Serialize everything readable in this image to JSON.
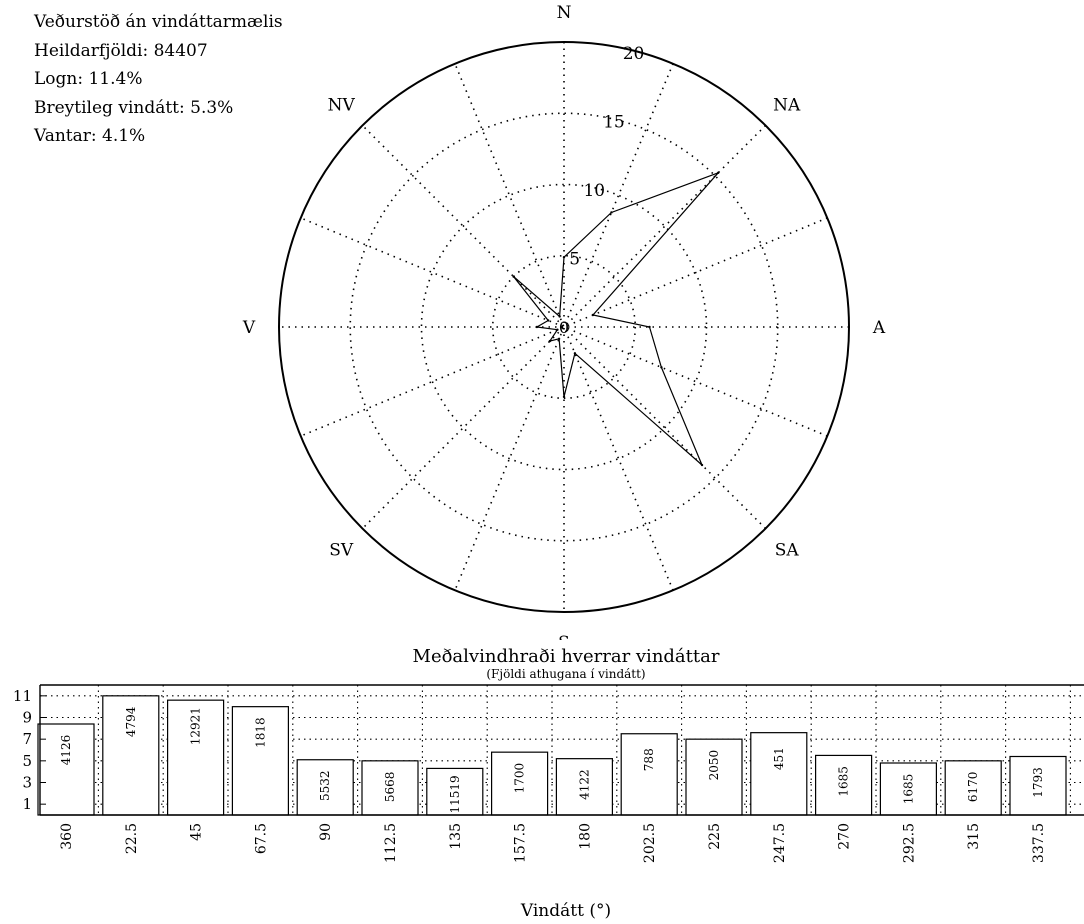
{
  "info": {
    "station": "Veðurstöð án vindáttarmælis",
    "total": "Heildarfjöldi: 84407",
    "calm": "Logn: 11.4%",
    "variable": "Breytileg vindátt: 5.3%",
    "missing": "Vantar: 4.1%"
  },
  "chart_data": [
    {
      "type": "polar-line",
      "compass_labels": [
        "N",
        "NA",
        "A",
        "SA",
        "S",
        "SV",
        "V",
        "NV"
      ],
      "radial_ticks": [
        5,
        10,
        15,
        20
      ],
      "center_label": "0",
      "rmax": 20,
      "grid": true,
      "series": [
        {
          "directions_deg": [
            0,
            22.5,
            45,
            67.5,
            90,
            112.5,
            135,
            157.5,
            180,
            202.5,
            225,
            247.5,
            270,
            292.5,
            315,
            337.5
          ],
          "values": [
            4.9,
            8.7,
            15.3,
            2.2,
            6.0,
            7.4,
            13.7,
            2.0,
            4.9,
            0.9,
            1.4,
            0.5,
            1.9,
            1.2,
            5.0,
            0.8
          ]
        }
      ]
    },
    {
      "type": "bar",
      "title": "Meðalvindhraði hverrar vindáttar",
      "subtitle": "(Fjöldi athugana í vindátt)",
      "xlabel": "Vindátt (°)",
      "ylabel": "",
      "categories": [
        "360",
        "22.5",
        "45",
        "67.5",
        "90",
        "112.5",
        "135",
        "157.5",
        "180",
        "202.5",
        "225",
        "247.5",
        "270",
        "292.5",
        "315",
        "337.5"
      ],
      "values": [
        8.4,
        11.0,
        10.6,
        10.0,
        5.1,
        5.0,
        4.3,
        5.8,
        5.2,
        7.5,
        7.0,
        7.6,
        5.5,
        4.8,
        5.0,
        5.4
      ],
      "counts": [
        "4126",
        "4794",
        "12921",
        "1818",
        "5532",
        "5668",
        "11519",
        "1700",
        "4122",
        "788",
        "2050",
        "451",
        "1685",
        "1685",
        "6170",
        "1793"
      ],
      "yticks": [
        1,
        3,
        5,
        7,
        9,
        11
      ],
      "ylim": [
        0,
        12
      ],
      "grid": true
    }
  ]
}
